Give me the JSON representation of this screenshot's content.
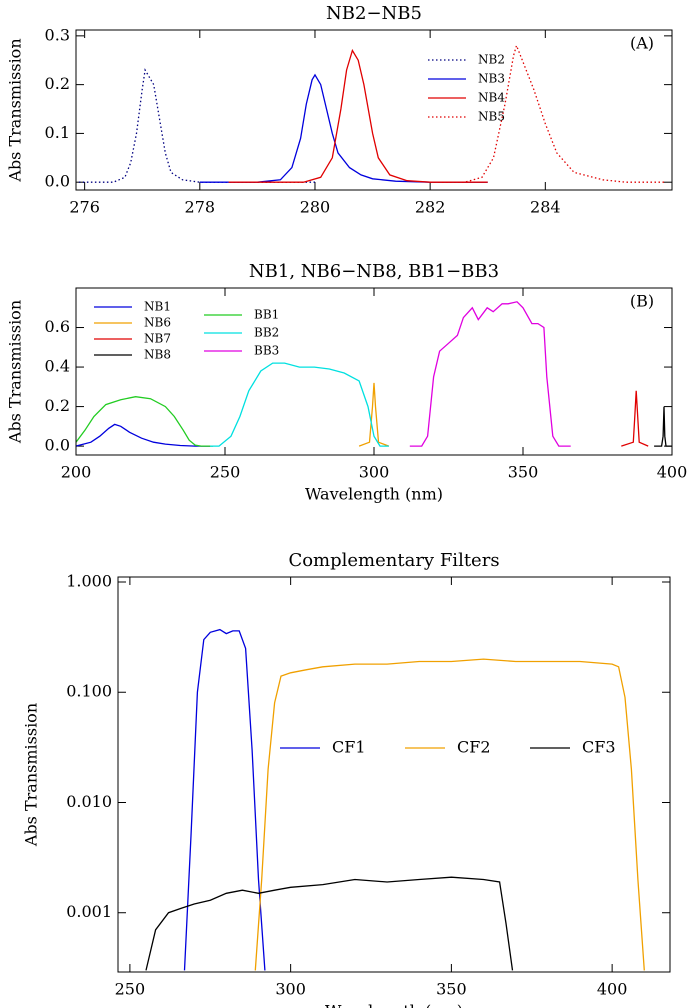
{
  "chart_data": [
    {
      "type": "line",
      "title": "NB2−NB5",
      "y_label": "Abs Transmission",
      "annotation": "(A)",
      "legend": "upper right",
      "xlim": [
        275.85,
        286.2
      ],
      "xticks": [
        276,
        278,
        280,
        282,
        284
      ],
      "ylim": [
        -0.016,
        0.312
      ],
      "yticks": [
        {
          "value": 0,
          "label": "0.0"
        },
        0.1,
        0.2,
        0.3
      ],
      "series": [
        {
          "name": "NB2",
          "color": "#000080",
          "dash": "dotted",
          "x": [
            275.9,
            276.5,
            276.7,
            276.8,
            276.9,
            277.0,
            277.05,
            277.1,
            277.2,
            277.3,
            277.4,
            277.5,
            277.7,
            278.0,
            280.0
          ],
          "values": [
            0,
            0,
            0.01,
            0.04,
            0.1,
            0.19,
            0.23,
            0.22,
            0.2,
            0.13,
            0.06,
            0.02,
            0.005,
            0,
            0
          ]
        },
        {
          "name": "NB3",
          "color": "#0000dd",
          "dash": "solid",
          "x": [
            278.0,
            279.0,
            279.4,
            279.6,
            279.75,
            279.85,
            279.95,
            280.0,
            280.1,
            280.2,
            280.3,
            280.4,
            280.6,
            280.8,
            281.0,
            281.4,
            282.0,
            283.0
          ],
          "values": [
            0,
            0,
            0.005,
            0.03,
            0.09,
            0.16,
            0.21,
            0.22,
            0.2,
            0.15,
            0.1,
            0.06,
            0.03,
            0.015,
            0.007,
            0.002,
            0,
            0
          ]
        },
        {
          "name": "NB4",
          "color": "#e00000",
          "dash": "solid",
          "x": [
            278.5,
            279.8,
            280.1,
            280.3,
            280.45,
            280.55,
            280.65,
            280.75,
            280.85,
            281.0,
            281.1,
            281.3,
            281.6,
            282.0,
            283.0
          ],
          "values": [
            0,
            0,
            0.01,
            0.05,
            0.15,
            0.23,
            0.27,
            0.25,
            0.2,
            0.1,
            0.05,
            0.015,
            0.003,
            0,
            0
          ]
        },
        {
          "name": "NB5",
          "color": "#e00000",
          "dash": "dotted",
          "x": [
            282.0,
            282.6,
            282.9,
            283.1,
            283.3,
            283.45,
            283.5,
            283.6,
            283.8,
            284.0,
            284.2,
            284.5,
            285.0,
            285.4,
            286.1
          ],
          "values": [
            0,
            0,
            0.01,
            0.05,
            0.16,
            0.26,
            0.28,
            0.25,
            0.19,
            0.12,
            0.06,
            0.02,
            0.005,
            0,
            0
          ]
        }
      ]
    },
    {
      "type": "line",
      "title": "NB1, NB6−NB8, BB1−BB3",
      "x_label": "Wavelength (nm)",
      "y_label": "Abs Transmission",
      "annotation": "(B)",
      "legend": "upper left",
      "xlim": [
        200,
        400
      ],
      "xticks": [
        200,
        250,
        300,
        350,
        400
      ],
      "ylim": [
        -0.045,
        0.8
      ],
      "yticks": [
        {
          "value": 0,
          "label": "0.0"
        },
        0.2,
        0.4,
        0.6
      ],
      "series": [
        {
          "name": "NB1",
          "color": "#0000dd",
          "dash": "solid",
          "x": [
            200,
            205,
            208,
            211,
            213,
            215,
            218,
            222,
            226,
            230,
            235,
            240,
            245
          ],
          "values": [
            0,
            0.02,
            0.05,
            0.09,
            0.11,
            0.1,
            0.07,
            0.04,
            0.02,
            0.01,
            0.003,
            0,
            0
          ]
        },
        {
          "name": "NB6",
          "color": "#f0a000",
          "dash": "solid",
          "x": [
            295,
            298.5,
            299.5,
            300,
            300.5,
            301.5,
            305
          ],
          "values": [
            0,
            0.02,
            0.2,
            0.32,
            0.2,
            0.02,
            0
          ]
        },
        {
          "name": "NB7",
          "color": "#e00000",
          "dash": "solid",
          "x": [
            383,
            387,
            387.5,
            388,
            388.5,
            389,
            392
          ],
          "values": [
            0,
            0.02,
            0.15,
            0.28,
            0.15,
            0.02,
            0
          ]
        },
        {
          "name": "NB8",
          "color": "#000000",
          "dash": "solid",
          "x": [
            394,
            396.5,
            397,
            397.3,
            397.6,
            398,
            400
          ],
          "values": [
            0,
            0,
            0.05,
            0.2,
            0.05,
            0,
            0
          ]
        },
        {
          "name": "BB1",
          "color": "#22cc22",
          "dash": "solid",
          "x": [
            200,
            203,
            206,
            210,
            215,
            220,
            225,
            230,
            233,
            236,
            238,
            240,
            242,
            246
          ],
          "values": [
            0.02,
            0.08,
            0.15,
            0.21,
            0.235,
            0.25,
            0.24,
            0.2,
            0.15,
            0.08,
            0.03,
            0.005,
            0,
            0
          ]
        },
        {
          "name": "BB2",
          "color": "#00e0e0",
          "dash": "solid",
          "x": [
            245,
            248,
            252,
            255,
            258,
            262,
            266,
            270,
            275,
            280,
            285,
            290,
            295,
            298,
            300,
            302,
            305
          ],
          "values": [
            0,
            0,
            0.05,
            0.15,
            0.28,
            0.38,
            0.42,
            0.42,
            0.4,
            0.4,
            0.39,
            0.37,
            0.33,
            0.2,
            0.05,
            0,
            0
          ]
        },
        {
          "name": "BB3",
          "color": "#e000e0",
          "dash": "solid",
          "x": [
            312,
            316,
            318,
            320,
            322,
            325,
            328,
            330,
            333,
            335,
            338,
            340,
            343,
            345,
            348,
            350,
            353,
            355,
            357,
            358,
            360,
            362,
            366
          ],
          "values": [
            0,
            0,
            0.05,
            0.35,
            0.48,
            0.52,
            0.56,
            0.65,
            0.7,
            0.64,
            0.7,
            0.68,
            0.72,
            0.72,
            0.73,
            0.7,
            0.62,
            0.62,
            0.6,
            0.35,
            0.05,
            0,
            0
          ]
        }
      ]
    },
    {
      "type": "line",
      "title": "Complementary Filters",
      "x_label": "Wavelength (nm)",
      "y_label": "Abs Transmission",
      "legend": "center",
      "log_y": true,
      "xlim": [
        246.3,
        418
      ],
      "xticks": [
        250,
        300,
        350,
        400
      ],
      "ylim": [
        0.00029,
        1.11
      ],
      "yticks": [
        0.001,
        {
          "value": 0.01,
          "label": "0.010"
        },
        {
          "value": 0.1,
          "label": "0.100"
        },
        {
          "value": 1,
          "label": "1.000"
        }
      ],
      "series": [
        {
          "name": "CF1",
          "color": "#0000dd",
          "dash": "solid",
          "x": [
            267,
            269,
            271,
            273,
            275,
            278,
            280,
            282,
            284,
            286,
            288,
            290,
            292
          ],
          "values": [
            0.0003,
            0.005,
            0.1,
            0.3,
            0.35,
            0.37,
            0.34,
            0.36,
            0.36,
            0.25,
            0.03,
            0.002,
            0.0003
          ]
        },
        {
          "name": "CF2",
          "color": "#f0a000",
          "dash": "solid",
          "x": [
            289,
            291,
            293,
            295,
            297,
            300,
            305,
            310,
            320,
            330,
            340,
            350,
            360,
            370,
            380,
            390,
            400,
            402,
            404,
            406,
            408,
            410
          ],
          "values": [
            0.0003,
            0.002,
            0.02,
            0.08,
            0.14,
            0.15,
            0.16,
            0.17,
            0.18,
            0.18,
            0.19,
            0.19,
            0.2,
            0.19,
            0.19,
            0.19,
            0.18,
            0.17,
            0.09,
            0.02,
            0.002,
            0.0003
          ]
        },
        {
          "name": "CF3",
          "color": "#000000",
          "dash": "solid",
          "x": [
            255,
            258,
            262,
            266,
            270,
            275,
            280,
            285,
            290,
            295,
            300,
            310,
            320,
            330,
            340,
            350,
            360,
            365,
            367,
            369
          ],
          "values": [
            0.0003,
            0.0007,
            0.001,
            0.0011,
            0.0012,
            0.0013,
            0.0015,
            0.0016,
            0.0015,
            0.0016,
            0.0017,
            0.0018,
            0.002,
            0.0019,
            0.002,
            0.0021,
            0.002,
            0.0019,
            0.0008,
            0.0003
          ]
        }
      ]
    }
  ]
}
